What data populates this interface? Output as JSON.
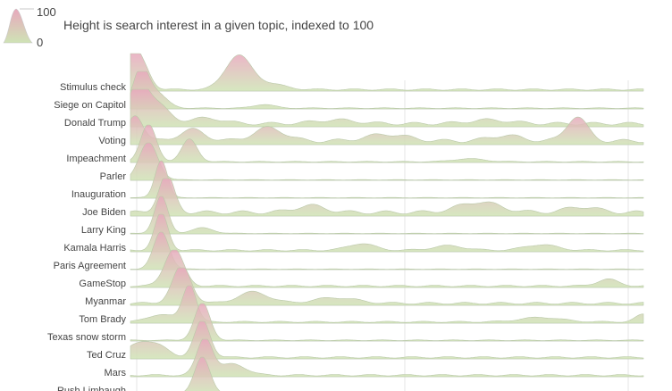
{
  "legend": {
    "max_label": "100",
    "min_label": "0",
    "caption": "Height is search interest in a given topic, indexed to 100"
  },
  "colors": {
    "top": "#e8a8bd",
    "bottom": "#cfe3b5",
    "stroke": "#b9c9a8",
    "baseline": "#d9d9d9",
    "gridline": "#e6e6e6"
  },
  "chart_data": {
    "type": "area",
    "style": "ridgeline",
    "y_range": [
      0,
      100
    ],
    "x_index_range": [
      0,
      100
    ],
    "series": [
      {
        "name": "Stimulus check",
        "peaks": [
          [
            0,
            100,
            1.5
          ],
          [
            2.5,
            55,
            1.5
          ],
          [
            21,
            90,
            2.5
          ],
          [
            27,
            15,
            3
          ]
        ],
        "base": 6
      },
      {
        "name": "Siege on Capitol",
        "peaks": [
          [
            2,
            100,
            1.5
          ],
          [
            5,
            40,
            2
          ],
          [
            26,
            10,
            2
          ]
        ],
        "base": 3
      },
      {
        "name": "Donald Trump",
        "peaks": [
          [
            1.5,
            100,
            1.8
          ],
          [
            5,
            50,
            2.5
          ],
          [
            15,
            15,
            3
          ],
          [
            40,
            10,
            4
          ],
          [
            70,
            10,
            4
          ]
        ],
        "base": 12
      },
      {
        "name": "Voting",
        "peaks": [
          [
            1,
            70,
            1.5
          ],
          [
            12,
            30,
            2.5
          ],
          [
            27,
            35,
            3
          ],
          [
            50,
            18,
            4
          ],
          [
            73,
            15,
            3
          ],
          [
            87,
            65,
            2
          ]
        ],
        "base": 14
      },
      {
        "name": "Impeachment",
        "peaks": [
          [
            3.5,
            100,
            1.5
          ],
          [
            11.5,
            60,
            1.5
          ],
          [
            66,
            8,
            3
          ]
        ],
        "base": 3
      },
      {
        "name": "Parler",
        "peaks": [
          [
            3.5,
            100,
            1.8
          ]
        ],
        "base": 2
      },
      {
        "name": "Inauguration",
        "peaks": [
          [
            6,
            100,
            1.2
          ]
        ],
        "base": 2
      },
      {
        "name": "Joe Biden",
        "peaks": [
          [
            7,
            100,
            1.5
          ],
          [
            35,
            18,
            3
          ],
          [
            68,
            28,
            4
          ],
          [
            88,
            15,
            3
          ]
        ],
        "base": 14
      },
      {
        "name": "Larry King",
        "peaks": [
          [
            6,
            100,
            1.3
          ],
          [
            14,
            15,
            2
          ]
        ],
        "base": 2
      },
      {
        "name": "Kamala Harris",
        "peaks": [
          [
            6,
            100,
            1.3
          ],
          [
            45,
            18,
            2.5
          ],
          [
            62,
            12,
            3
          ],
          [
            80,
            15,
            3
          ]
        ],
        "base": 6
      },
      {
        "name": "Paris Agreement",
        "peaks": [
          [
            6,
            100,
            1.5
          ]
        ],
        "base": 2
      },
      {
        "name": "GameStop",
        "peaks": [
          [
            8.5,
            100,
            1.8
          ],
          [
            93,
            18,
            2
          ]
        ],
        "base": 6
      },
      {
        "name": "Myanmar",
        "peaks": [
          [
            10,
            100,
            1.8
          ],
          [
            24,
            30,
            3
          ],
          [
            40,
            15,
            4
          ]
        ],
        "base": 8
      },
      {
        "name": "Tom Brady",
        "peaks": [
          [
            11.5,
            100,
            1.3
          ],
          [
            6,
            20,
            2.5
          ],
          [
            80,
            12,
            4
          ],
          [
            100,
            20,
            1.5
          ]
        ],
        "base": 5
      },
      {
        "name": "Texas snow storm",
        "peaks": [
          [
            14,
            100,
            1.5
          ]
        ],
        "base": 3
      },
      {
        "name": "Ted Cruz",
        "peaks": [
          [
            14,
            100,
            1.5
          ],
          [
            2,
            40,
            2.5
          ],
          [
            6,
            20,
            2
          ]
        ],
        "base": 6
      },
      {
        "name": "Mars",
        "peaks": [
          [
            14.5,
            100,
            1.5
          ],
          [
            20,
            30,
            2.5
          ]
        ],
        "base": 6
      },
      {
        "name": "Rush Limbaugh",
        "peaks": [
          [
            14,
            100,
            1.5
          ]
        ],
        "base": 2
      }
    ]
  }
}
